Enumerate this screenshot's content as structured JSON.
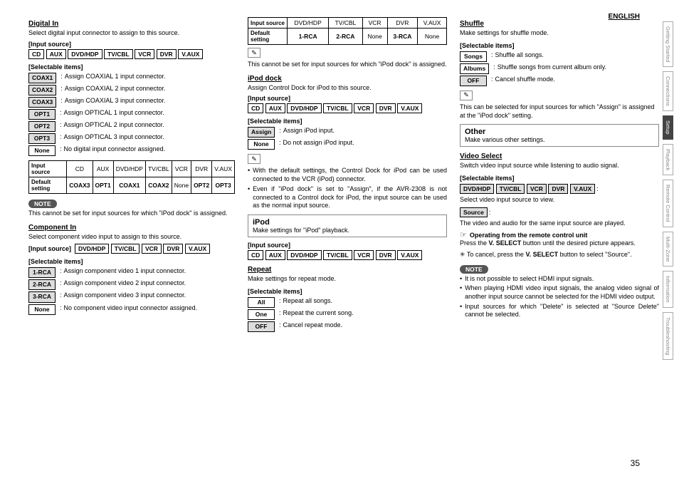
{
  "header": {
    "english": "ENGLISH",
    "pagenum": "35"
  },
  "tabs": [
    "Getting Started",
    "Connections",
    "Setup",
    "Playback",
    "Remote Control",
    "Multi-Zone",
    "Information",
    "Troubleshooting"
  ],
  "activeTab": 2,
  "digitalIn": {
    "title": "Digital In",
    "desc": "Select digital input connector to assign to this source.",
    "inputLabel": "[Input source]",
    "inputs": [
      "CD",
      "AUX",
      "DVD/HDP",
      "TV/CBL",
      "VCR",
      "DVR",
      "V.AUX"
    ],
    "selectableLabel": "[Selectable items]",
    "items": [
      {
        "k": "COAX1",
        "g": true,
        "t": "Assign COAXIAL 1 input connector."
      },
      {
        "k": "COAX2",
        "g": true,
        "t": "Assign COAXIAL 2 input connector."
      },
      {
        "k": "COAX3",
        "g": true,
        "t": "Assign COAXIAL 3 input connector."
      },
      {
        "k": "OPT1",
        "g": true,
        "t": "Assign OPTICAL 1 input connector."
      },
      {
        "k": "OPT2",
        "g": true,
        "t": "Assign OPTICAL 2 input connector."
      },
      {
        "k": "OPT3",
        "g": true,
        "t": "Assign OPTICAL 3 input connector."
      },
      {
        "k": "None",
        "g": false,
        "t": "No digital input connector assigned."
      }
    ],
    "table": {
      "headRow": [
        "Input source",
        "CD",
        "AUX",
        "DVD/HDP",
        "TV/CBL",
        "VCR",
        "DVR",
        "V.AUX"
      ],
      "defRow": [
        "Default setting",
        "COAX3",
        "OPT1",
        "COAX1",
        "COAX2",
        "None",
        "OPT2",
        "OPT3"
      ]
    },
    "noteLabel": "NOTE",
    "noteText": "This cannot be set for input sources for which \"iPod dock\" is assigned."
  },
  "componentIn": {
    "title": "Component In",
    "desc": "Select component video input to assign to this source.",
    "inputLabel": "[Input source]",
    "inputs": [
      "DVD/HDP",
      "TV/CBL",
      "VCR",
      "DVR",
      "V.AUX"
    ],
    "selectableLabel": "[Selectable items]",
    "items": [
      {
        "k": "1-RCA",
        "g": true,
        "t": "Assign component video 1 input connector."
      },
      {
        "k": "2-RCA",
        "g": true,
        "t": "Assign component video 2 input connector."
      },
      {
        "k": "3-RCA",
        "g": true,
        "t": "Assign component video 3 input connector."
      },
      {
        "k": "None",
        "g": false,
        "t": "No component video input connector assigned."
      }
    ]
  },
  "componentTable": {
    "headRow": [
      "Input source",
      "DVD/HDP",
      "TV/CBL",
      "VCR",
      "DVR",
      "V.AUX"
    ],
    "defRow": [
      "Default setting",
      "1-RCA",
      "2-RCA",
      "None",
      "3-RCA",
      "None"
    ]
  },
  "compNoteText": "This cannot be set for input sources for which \"iPod dock\" is assigned.",
  "ipodDock": {
    "title": "iPod dock",
    "desc": "Assign Control Dock for iPod to this source.",
    "inputLabel": "[Input source]",
    "inputs": [
      "CD",
      "AUX",
      "DVD/HDP",
      "TV/CBL",
      "VCR",
      "DVR",
      "V.AUX"
    ],
    "selectableLabel": "[Selectable items]",
    "items": [
      {
        "k": "Assign",
        "g": true,
        "t": "Assign iPod input."
      },
      {
        "k": "None",
        "g": false,
        "t": "Do not assign iPod input."
      }
    ],
    "bullets": [
      "With the default settings, the Control Dock for iPod can be used connected to the VCR (iPod) connector.",
      "Even if \"iPod dock\" is set to \"Assign\", if the AVR-2308 is not connected to a Control dock for iPod, the input source can be used as the normal input source."
    ]
  },
  "ipodBox": {
    "title": "iPod",
    "sub": "Make settings for \"iPod\" playback."
  },
  "ipodInputs": {
    "label": "[Input source]",
    "vals": [
      "CD",
      "AUX",
      "DVD/HDP",
      "TV/CBL",
      "VCR",
      "DVR",
      "V.AUX"
    ]
  },
  "repeat": {
    "title": "Repeat",
    "desc": "Make settings for repeat mode.",
    "selectableLabel": "[Selectable items]",
    "items": [
      {
        "k": "All",
        "g": false,
        "t": "Repeat all songs."
      },
      {
        "k": "One",
        "g": false,
        "t": "Repeat the current song."
      },
      {
        "k": "OFF",
        "g": true,
        "t": "Cancel repeat mode."
      }
    ]
  },
  "shuffle": {
    "title": "Shuffle",
    "desc": "Make settings for shuffle mode.",
    "selectableLabel": "[Selectable items]",
    "items": [
      {
        "k": "Songs",
        "g": false,
        "t": "Shuffle all songs."
      },
      {
        "k": "Albums",
        "g": false,
        "t": "Shuffle songs from current album only."
      },
      {
        "k": "OFF",
        "g": true,
        "t": "Cancel shuffle mode."
      }
    ],
    "noteText": "This can be selected for input sources for which \"Assign\" is assigned at the \"iPod dock\" setting."
  },
  "otherBox": {
    "title": "Other",
    "sub": "Make various other settings."
  },
  "videoSelect": {
    "title": "Video Select",
    "desc": "Switch video input source while listening to audio signal.",
    "selectableLabel": "[Selectable items]",
    "row1": [
      "DVD/HDP",
      "TV/CBL",
      "VCR",
      "DVR",
      "V.AUX"
    ],
    "row1trail": ":",
    "row1desc": "Select video input source to view.",
    "sourceChip": "Source",
    "sourceTrail": ":",
    "sourceDesc": "The video and audio for the same input source are played.",
    "handTitle": "Operating from the remote control unit",
    "handLine1a": "Press the ",
    "handLine1b": "V. SELECT",
    "handLine1c": " button until the desired picture appears.",
    "cancelStar": "✳",
    "cancelText": "To cancel, press the ",
    "cancelBtn": "V. SELECT",
    "cancelTail": " button to select \"Source\".",
    "noteLabel": "NOTE",
    "bullets": [
      "It is not possible to select HDMI input signals.",
      "When playing HDMI video input signals, the analog video signal of another input source cannot be selected for the HDMI video output.",
      "Input sources for which \"Delete\" is selected at \"Source Delete\" cannot be selected."
    ]
  }
}
